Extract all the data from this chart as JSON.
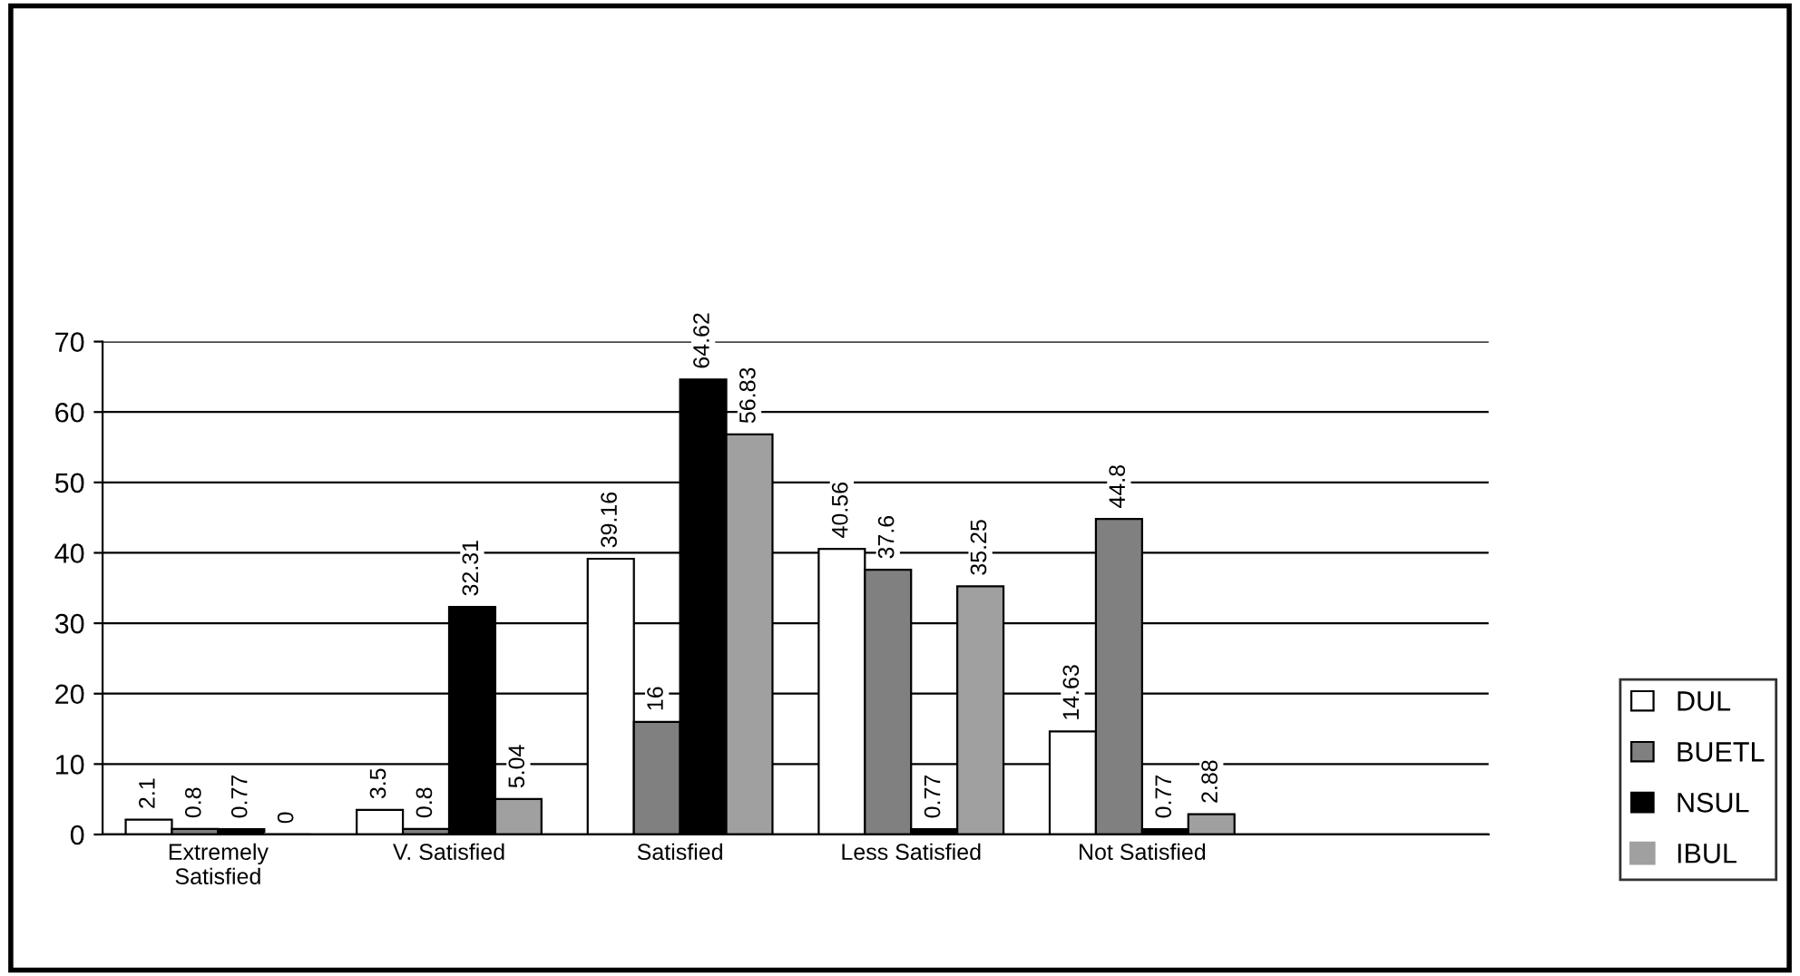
{
  "chart_data": {
    "type": "bar",
    "categories": [
      "Extremely\nSatisfied",
      "V. Satisfied",
      "Satisfied",
      "Less Satisfied",
      "Not Satisfied",
      null
    ],
    "series": [
      {
        "name": "DUL",
        "color": "#ffffff",
        "values": [
          2.1,
          3.5,
          39.16,
          40.56,
          14.63,
          null
        ]
      },
      {
        "name": "BUETL",
        "color": "#808080",
        "values": [
          0.8,
          0.8,
          16,
          37.6,
          44.8,
          null
        ]
      },
      {
        "name": "NSUL",
        "color": "#000000",
        "values": [
          0.77,
          32.31,
          64.62,
          0.77,
          0.77,
          null
        ]
      },
      {
        "name": "IBUL",
        "color": "#a0a0a0",
        "values": [
          0,
          5.04,
          56.83,
          35.25,
          2.88,
          null
        ]
      }
    ],
    "ylim": [
      0,
      70
    ],
    "yticks": [
      0,
      10,
      20,
      30,
      40,
      50,
      60,
      70
    ],
    "grid": "y",
    "legend": "bottom right",
    "data_labels": true
  }
}
